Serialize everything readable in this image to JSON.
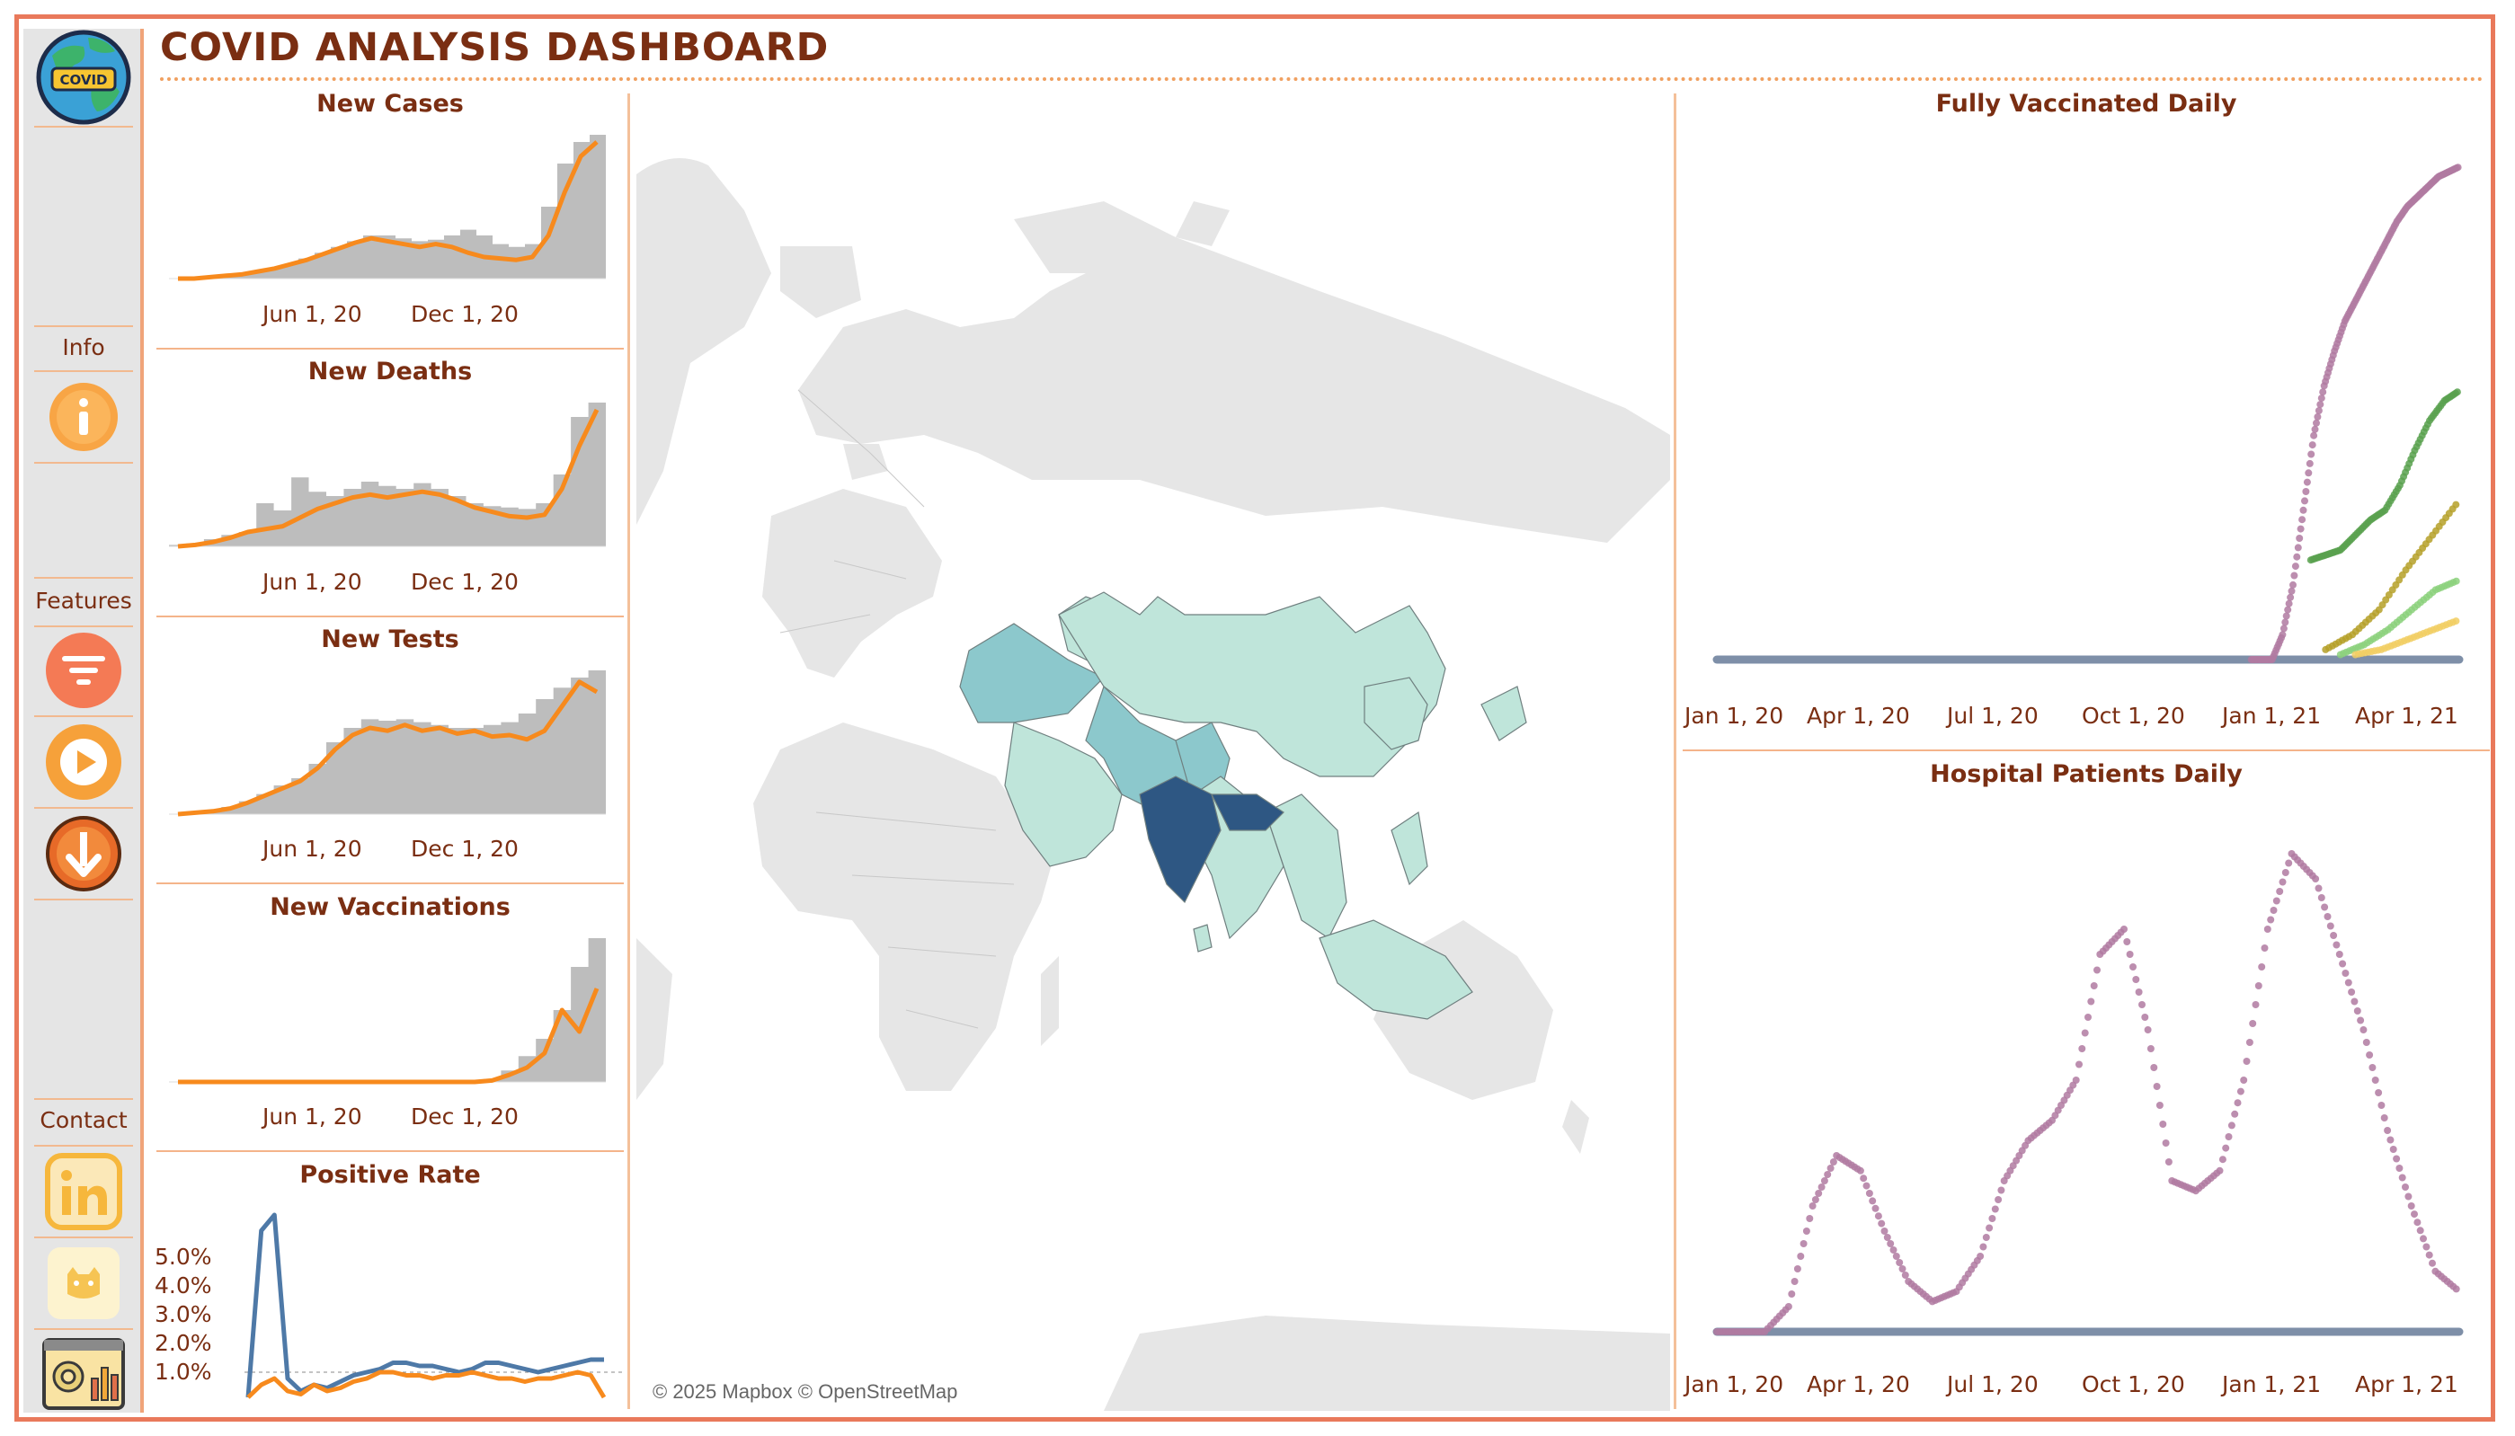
{
  "header": {
    "title": "COVID ANALYSIS DASHBOARD"
  },
  "sidebar": {
    "logo": {
      "icon": "covid-globe-icon",
      "badge_text": "COVID"
    },
    "sections": [
      {
        "label": "Info",
        "items": [
          {
            "icon": "info-icon",
            "color": "#f8a545"
          }
        ]
      },
      {
        "label": "Features",
        "items": [
          {
            "icon": "filter-icon",
            "color": "#f47a55"
          },
          {
            "icon": "play-icon",
            "color": "#f6a13a"
          },
          {
            "icon": "download-icon",
            "color": "#e76a28"
          }
        ]
      },
      {
        "label": "Contact",
        "items": [
          {
            "icon": "linkedin-icon",
            "color": "#f6b73c"
          },
          {
            "icon": "github-icon",
            "color": "#f6c453"
          },
          {
            "icon": "dashboard-icon",
            "color": "#e0b25a"
          }
        ]
      }
    ]
  },
  "map": {
    "attribution": "© 2025 Mapbox © OpenStreetMap",
    "highlight_color": "#2e5783",
    "mid_color": "#8cc8cc",
    "light_color": "#bfe5da",
    "base_color": "#e6e6e6"
  },
  "colors": {
    "accent": "#e9795b",
    "title": "#7a2e12",
    "orange_line": "#f78a1d",
    "gray_area": "#bdbdbd",
    "blue_line": "#4e79a7",
    "purple_dots": "#b07aa1"
  },
  "chart_data": [
    {
      "id": "new-cases",
      "type": "area",
      "title": "New Cases",
      "xticks": [
        "Jun 1, 20",
        "Dec 1, 20"
      ],
      "series": [
        {
          "kind": "area",
          "values": [
            0,
            0,
            0.01,
            0.02,
            0.03,
            0.05,
            0.07,
            0.1,
            0.14,
            0.18,
            0.22,
            0.26,
            0.3,
            0.3,
            0.28,
            0.26,
            0.27,
            0.3,
            0.34,
            0.3,
            0.24,
            0.22,
            0.24,
            0.5,
            0.8,
            0.95,
            1.0
          ]
        },
        {
          "kind": "line",
          "values": [
            0,
            0,
            0.01,
            0.02,
            0.03,
            0.05,
            0.07,
            0.1,
            0.13,
            0.17,
            0.21,
            0.25,
            0.28,
            0.26,
            0.24,
            0.22,
            0.24,
            0.22,
            0.18,
            0.15,
            0.14,
            0.13,
            0.15,
            0.3,
            0.6,
            0.85,
            0.95
          ]
        }
      ]
    },
    {
      "id": "new-deaths",
      "type": "area",
      "title": "New Deaths",
      "xticks": [
        "Jun 1, 20",
        "Dec 1, 20"
      ],
      "series": [
        {
          "kind": "area",
          "values": [
            0.01,
            0.02,
            0.05,
            0.08,
            0.1,
            0.3,
            0.25,
            0.48,
            0.38,
            0.35,
            0.4,
            0.45,
            0.42,
            0.4,
            0.44,
            0.4,
            0.35,
            0.3,
            0.28,
            0.27,
            0.26,
            0.3,
            0.5,
            0.9,
            1.0
          ]
        },
        {
          "kind": "line",
          "values": [
            0,
            0.01,
            0.03,
            0.06,
            0.1,
            0.12,
            0.14,
            0.2,
            0.26,
            0.3,
            0.34,
            0.36,
            0.34,
            0.36,
            0.38,
            0.36,
            0.32,
            0.27,
            0.24,
            0.21,
            0.2,
            0.22,
            0.4,
            0.7,
            0.95
          ]
        }
      ]
    },
    {
      "id": "new-tests",
      "type": "area",
      "title": "New Tests",
      "xticks": [
        "Jun 1, 20",
        "Dec 1, 20"
      ],
      "series": [
        {
          "kind": "area",
          "values": [
            0,
            0.01,
            0.02,
            0.05,
            0.09,
            0.14,
            0.2,
            0.25,
            0.35,
            0.5,
            0.6,
            0.66,
            0.65,
            0.66,
            0.64,
            0.62,
            0.6,
            0.6,
            0.62,
            0.64,
            0.7,
            0.8,
            0.88,
            0.95,
            1.0
          ]
        },
        {
          "kind": "line",
          "values": [
            0,
            0.01,
            0.02,
            0.04,
            0.08,
            0.13,
            0.18,
            0.23,
            0.32,
            0.45,
            0.55,
            0.6,
            0.58,
            0.62,
            0.58,
            0.6,
            0.56,
            0.58,
            0.54,
            0.55,
            0.52,
            0.58,
            0.75,
            0.92,
            0.85
          ]
        }
      ]
    },
    {
      "id": "new-vaccinations",
      "type": "area",
      "title": "New Vaccinations",
      "xticks": [
        "Jun 1, 20",
        "Dec 1, 20"
      ],
      "series": [
        {
          "kind": "area",
          "values": [
            0,
            0,
            0,
            0,
            0,
            0,
            0,
            0,
            0,
            0,
            0,
            0,
            0,
            0,
            0,
            0,
            0,
            0,
            0.02,
            0.08,
            0.18,
            0.3,
            0.5,
            0.8,
            1.0
          ]
        },
        {
          "kind": "line",
          "values": [
            0,
            0,
            0,
            0,
            0,
            0,
            0,
            0,
            0,
            0,
            0,
            0,
            0,
            0,
            0,
            0,
            0,
            0,
            0.01,
            0.05,
            0.1,
            0.2,
            0.5,
            0.35,
            0.65
          ]
        }
      ]
    },
    {
      "id": "positive-rate",
      "type": "line",
      "title": "Positive Rate",
      "yticks": [
        "5.0%",
        "4.0%",
        "3.0%",
        "2.0%",
        "1.0%"
      ],
      "ylim": [
        0,
        6
      ],
      "reference_line": 1.0,
      "series": [
        {
          "name": "",
          "color": "#4e79a7",
          "values": [
            0.2,
            5.5,
            6.0,
            0.8,
            0.4,
            0.6,
            0.5,
            0.7,
            0.9,
            1.0,
            1.1,
            1.3,
            1.3,
            1.2,
            1.2,
            1.1,
            1.0,
            1.1,
            1.3,
            1.3,
            1.2,
            1.1,
            1.0,
            1.1,
            1.2,
            1.3,
            1.4,
            1.4
          ]
        },
        {
          "name": "",
          "color": "#f78a1d",
          "values": [
            0.2,
            0.6,
            0.8,
            0.4,
            0.3,
            0.6,
            0.4,
            0.5,
            0.7,
            0.8,
            1.0,
            1.0,
            0.9,
            0.9,
            0.8,
            0.9,
            0.9,
            1.0,
            0.9,
            0.8,
            0.8,
            0.7,
            0.8,
            0.8,
            0.9,
            1.0,
            0.9,
            0.2
          ]
        }
      ]
    },
    {
      "id": "fully-vaccinated",
      "type": "scatter",
      "title": "Fully Vaccinated Daily",
      "xticks": [
        "Jan 1, 20",
        "Apr 1, 20",
        "Jul 1, 20",
        "Oct 1, 20",
        "Jan 1, 21",
        "Apr 1, 21"
      ],
      "series": [
        {
          "name": "",
          "color": "#b07aa1",
          "values": [
            0,
            0,
            0,
            0.05,
            0.15,
            0.3,
            0.45,
            0.55,
            0.62,
            0.68,
            0.72,
            0.76,
            0.8,
            0.84,
            0.88,
            0.91,
            0.93,
            0.95,
            0.97,
            0.98,
            0.99
          ]
        },
        {
          "name": "",
          "color": "#59a14f",
          "values": [
            0.2,
            0.21,
            0.22,
            0.25,
            0.28,
            0.3,
            0.35,
            0.42,
            0.48,
            0.52,
            0.54
          ]
        },
        {
          "name": "",
          "color": "#b5a028",
          "values": [
            0.02,
            0.05,
            0.1,
            0.18,
            0.25,
            0.32
          ]
        },
        {
          "name": "",
          "color": "#8cd17d",
          "values": [
            0.01,
            0.03,
            0.06,
            0.1,
            0.14,
            0.16
          ]
        },
        {
          "name": "",
          "color": "#f1ce63",
          "values": [
            0.01,
            0.02,
            0.04,
            0.06,
            0.08
          ]
        }
      ]
    },
    {
      "id": "hospital-patients",
      "type": "scatter",
      "title": "Hospital Patients Daily",
      "xticks": [
        "Jan 1, 20",
        "Apr 1, 20",
        "Jul 1, 20",
        "Oct 1, 20",
        "Jan 1, 21",
        "Apr 1, 21"
      ],
      "series": [
        {
          "name": "",
          "color": "#b07aa1",
          "values": [
            0,
            0,
            0,
            0.05,
            0.25,
            0.35,
            0.32,
            0.2,
            0.1,
            0.06,
            0.08,
            0.15,
            0.3,
            0.38,
            0.42,
            0.5,
            0.75,
            0.8,
            0.6,
            0.3,
            0.28,
            0.32,
            0.5,
            0.8,
            0.95,
            0.9,
            0.75,
            0.6,
            0.4,
            0.25,
            0.12,
            0.08
          ]
        }
      ]
    }
  ]
}
